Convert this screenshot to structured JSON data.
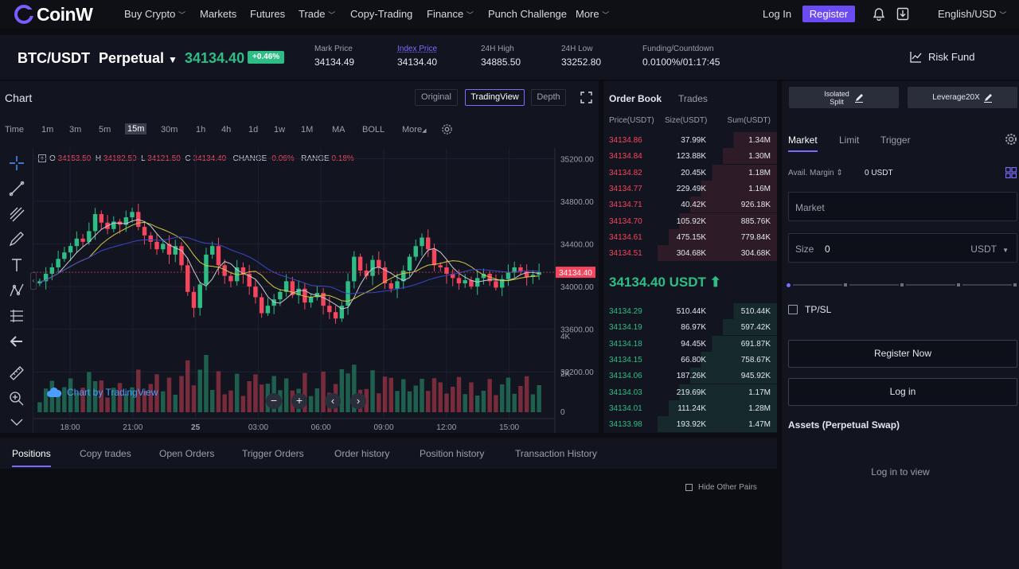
{
  "nav": {
    "brand": "CoinW",
    "items": [
      "Buy Crypto",
      "Markets",
      "Futures",
      "Trade",
      "Copy-Trading",
      "Finance",
      "Punch Challenge",
      "More"
    ],
    "login": "Log In",
    "register": "Register",
    "language": "English/USD"
  },
  "ticker": {
    "pair": "BTC/USDT",
    "contract": "Perpetual",
    "price": "34134.40",
    "change": "+0.46%",
    "stats": [
      {
        "label": "Mark Price",
        "value": "34134.49"
      },
      {
        "label": "Index Price",
        "value": "34134.40"
      },
      {
        "label": "24H High",
        "value": "34885.50"
      },
      {
        "label": "24H Low",
        "value": "33252.80"
      },
      {
        "label": "Funding/Countdown",
        "value": "0.0100%/01:17:45"
      }
    ],
    "risk_fund": "Risk Fund"
  },
  "chart": {
    "title": "Chart",
    "views": [
      "Original",
      "TradingView",
      "Depth"
    ],
    "active_view": "TradingView",
    "intervals": [
      "Time",
      "1m",
      "3m",
      "5m",
      "15m",
      "30m",
      "1h",
      "4h",
      "1d",
      "1w",
      "1M",
      "MA",
      "BOLL",
      "More"
    ],
    "active_interval": "15m",
    "ohlc": {
      "o_label": "O",
      "o": "34153.50",
      "h_label": "H",
      "h": "34182.50",
      "l_label": "L",
      "l": "34121.50",
      "c_label": "C",
      "c": "34134.40",
      "change_label": "CHANGE",
      "change": "-0.06%",
      "range_label": "RANGE",
      "range": "0.18%"
    },
    "y_ticks": [
      "35200.00",
      "34800.00",
      "34400.00",
      "34000.00",
      "33600.00",
      "33200.00"
    ],
    "current_price_tag": "34134.40",
    "vol_ticks": [
      "4K",
      "2K",
      "0"
    ],
    "x_ticks": [
      "18:00",
      "21:00",
      "25",
      "03:00",
      "06:00",
      "09:00",
      "12:00",
      "15:00"
    ],
    "watermark": "Chart by TradingView"
  },
  "chart_data": {
    "type": "candlestick",
    "x_labels": [
      "18:00",
      "21:00",
      "25",
      "03:00",
      "06:00",
      "09:00",
      "12:00",
      "15:00"
    ],
    "ylim": [
      33000,
      35300
    ],
    "close": [
      34050,
      34120,
      34180,
      34260,
      34320,
      34380,
      34450,
      34420,
      34520,
      34680,
      34600,
      34540,
      34610,
      34580,
      34650,
      34700,
      34560,
      34480,
      34420,
      34350,
      34400,
      34300,
      34380,
      34200,
      33950,
      33800,
      34020,
      34300,
      34380,
      34200,
      34100,
      34050,
      34180,
      34120,
      34000,
      33900,
      33750,
      33820,
      33880,
      33950,
      34050,
      33920,
      33980,
      33850,
      33900,
      33940,
      33820,
      33760,
      33700,
      33820,
      34050,
      34280,
      34150,
      34100,
      34250,
      34180,
      34030,
      33980,
      34050,
      34150,
      34280,
      34380,
      34460,
      34350,
      34200,
      34180,
      34120,
      34080,
      34030,
      34060,
      34000,
      34080,
      34120,
      34050,
      33990,
      34070,
      34130,
      34180,
      34140,
      34090,
      34110,
      34134
    ],
    "volume_note": "volume bars below price panel, peak near 3.9K"
  },
  "orderbook": {
    "tabs": [
      "Order Book",
      "Trades"
    ],
    "headers": [
      "Price(USDT)",
      "Size(USDT)",
      "Sum(USDT)"
    ],
    "asks": [
      [
        "34134.86",
        "37.99K",
        "1.34M"
      ],
      [
        "34134.84",
        "123.88K",
        "1.30M"
      ],
      [
        "34134.82",
        "20.45K",
        "1.18M"
      ],
      [
        "34134.77",
        "229.49K",
        "1.16M"
      ],
      [
        "34134.71",
        "40.42K",
        "926.18K"
      ],
      [
        "34134.70",
        "105.92K",
        "885.76K"
      ],
      [
        "34134.61",
        "475.15K",
        "779.84K"
      ],
      [
        "34134.51",
        "304.68K",
        "304.68K"
      ]
    ],
    "last_price": "34134.40 USDT",
    "bids": [
      [
        "34134.29",
        "510.44K",
        "510.44K"
      ],
      [
        "34134.19",
        "86.97K",
        "597.42K"
      ],
      [
        "34134.18",
        "94.45K",
        "691.87K"
      ],
      [
        "34134.15",
        "66.80K",
        "758.67K"
      ],
      [
        "34134.06",
        "187.26K",
        "945.92K"
      ],
      [
        "34134.03",
        "219.69K",
        "1.17M"
      ],
      [
        "34134.01",
        "111.24K",
        "1.28M"
      ],
      [
        "34133.98",
        "193.92K",
        "1.47M"
      ]
    ]
  },
  "order_form": {
    "margin_mode_line1": "Isolated",
    "margin_mode_line2": "Split",
    "leverage": "Leverage20X",
    "tabs": [
      "Market",
      "Limit",
      "Trigger"
    ],
    "avail_label": "Avail. Margin",
    "avail_value": "0 USDT",
    "price_placeholder": "Market",
    "size_label": "Size",
    "size_value": "0",
    "size_unit": "USDT",
    "tpsl": "TP/SL",
    "register_now": "Register Now",
    "login": "Log in",
    "assets_title": "Assets (Perpetual Swap)",
    "login_to_view": "Log in to view"
  },
  "bottom": {
    "tabs": [
      "Positions",
      "Copy trades",
      "Open Orders",
      "Trigger Orders",
      "Order history",
      "Position history",
      "Transaction History"
    ],
    "hide_other": "Hide Other Pairs"
  },
  "colors": {
    "accent": "#6b4cf2",
    "up": "#2ebd85",
    "down": "#f6465d",
    "bg": "#0b0d12",
    "panel": "#121520"
  }
}
